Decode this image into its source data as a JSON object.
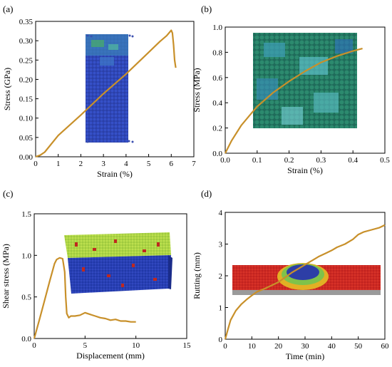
{
  "chart_data": [
    {
      "panel": "(a)",
      "type": "line",
      "xlabel": "Strain (%)",
      "ylabel": "Stress (GPa)",
      "xlim": [
        0,
        7
      ],
      "ylim": [
        0,
        0.35
      ],
      "xticks": [
        "0",
        "1",
        "2",
        "3",
        "4",
        "5",
        "6",
        "7"
      ],
      "yticks": [
        "0.00",
        "0.05",
        "0.10",
        "0.15",
        "0.20",
        "0.25",
        "0.30",
        "0.35"
      ],
      "series": [
        {
          "color": "#c8902a",
          "x": [
            0,
            0.2,
            0.4,
            1,
            2,
            3,
            4,
            5,
            5.5,
            5.8,
            6.0,
            6.05,
            6.1,
            6.15,
            6.2
          ],
          "y": [
            0,
            0.004,
            0.012,
            0.055,
            0.108,
            0.163,
            0.214,
            0.27,
            0.298,
            0.313,
            0.327,
            0.32,
            0.29,
            0.25,
            0.23
          ]
        }
      ],
      "inset": "specimen-particles-tall"
    },
    {
      "panel": "(b)",
      "type": "line",
      "xlabel": "Strain (%)",
      "ylabel": "Stress (MPa)",
      "xlim": [
        0,
        0.5
      ],
      "ylim": [
        0,
        1.0
      ],
      "xticks": [
        "0.0",
        "0.1",
        "0.2",
        "0.3",
        "0.4",
        "0.5"
      ],
      "yticks": [
        "0.0",
        "0.2",
        "0.4",
        "0.6",
        "0.8",
        "1.0"
      ],
      "series": [
        {
          "color": "#c8902a",
          "x": [
            0,
            0.02,
            0.05,
            0.08,
            0.1,
            0.15,
            0.2,
            0.25,
            0.3,
            0.35,
            0.4,
            0.43
          ],
          "y": [
            0,
            0.1,
            0.22,
            0.31,
            0.37,
            0.48,
            0.57,
            0.65,
            0.72,
            0.77,
            0.81,
            0.83
          ]
        }
      ],
      "inset": "specimen-particles-square"
    },
    {
      "panel": "(c)",
      "type": "line",
      "xlabel": "Displacement (mm)",
      "ylabel": "Shear stress (MPa)",
      "xlim": [
        0,
        15
      ],
      "ylim": [
        0,
        1.5
      ],
      "xticks": [
        "0",
        "5",
        "10",
        "15"
      ],
      "yticks": [
        "0.0",
        "0.5",
        "1.0",
        "1.5"
      ],
      "series": [
        {
          "color": "#c8902a",
          "x": [
            0,
            0.5,
            1,
            1.5,
            2,
            2.2,
            2.5,
            2.8,
            3.0,
            3.1,
            3.2,
            3.4,
            3.6,
            4,
            4.5,
            5,
            5.5,
            6,
            6.5,
            7,
            7.5,
            8,
            8.5,
            9,
            9.5,
            10
          ],
          "y": [
            0,
            0.22,
            0.45,
            0.68,
            0.9,
            0.95,
            0.97,
            0.96,
            0.8,
            0.5,
            0.3,
            0.25,
            0.27,
            0.27,
            0.28,
            0.31,
            0.29,
            0.27,
            0.25,
            0.24,
            0.22,
            0.23,
            0.21,
            0.21,
            0.2,
            0.2
          ]
        }
      ],
      "inset": "shear-box-3d"
    },
    {
      "panel": "(d)",
      "type": "line",
      "xlabel": "Time (min)",
      "ylabel": "Rutting (mm)",
      "xlim": [
        0,
        60
      ],
      "ylim": [
        0,
        4
      ],
      "xticks": [
        "0",
        "10",
        "20",
        "30",
        "40",
        "50",
        "60"
      ],
      "yticks": [
        "0",
        "1",
        "2",
        "3",
        "4"
      ],
      "series": [
        {
          "color": "#c8902a",
          "x": [
            0,
            1,
            2,
            4,
            6,
            8,
            10,
            12,
            15,
            18,
            20,
            22,
            25,
            28,
            30,
            33,
            35,
            38,
            40,
            42,
            45,
            48,
            50,
            52,
            55,
            58,
            60
          ],
          "y": [
            0,
            0.3,
            0.6,
            0.9,
            1.1,
            1.25,
            1.38,
            1.5,
            1.6,
            1.72,
            1.8,
            1.92,
            2.1,
            2.25,
            2.35,
            2.5,
            2.6,
            2.72,
            2.8,
            2.9,
            3.0,
            3.15,
            3.3,
            3.38,
            3.45,
            3.52,
            3.6
          ]
        }
      ],
      "inset": "pavement-slab"
    }
  ]
}
